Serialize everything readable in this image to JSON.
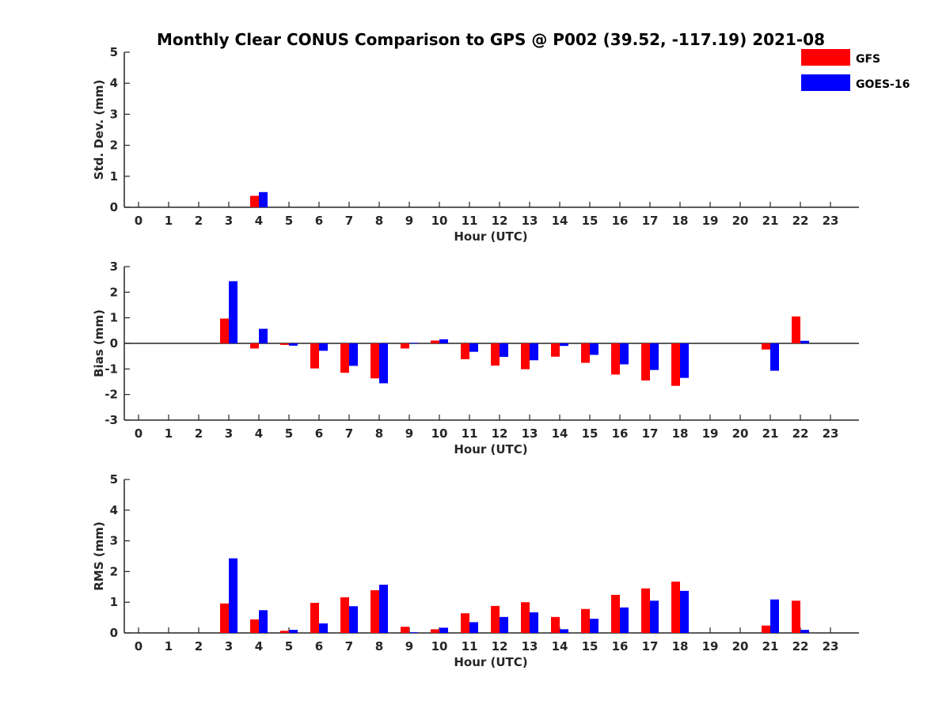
{
  "chart_data": {
    "type": "bar",
    "title": "Monthly Clear CONUS Comparison to GPS @ P002 (39.52, -117.19) 2021-08",
    "legend": {
      "placement": "top-right",
      "entries": [
        {
          "name": "GFS",
          "color": "#ff0000"
        },
        {
          "name": "GOES-16",
          "color": "#0000ff"
        }
      ]
    },
    "categories": [
      "0",
      "1",
      "2",
      "3",
      "4",
      "5",
      "6",
      "7",
      "8",
      "9",
      "10",
      "11",
      "12",
      "13",
      "14",
      "15",
      "16",
      "17",
      "18",
      "19",
      "20",
      "21",
      "22",
      "23"
    ],
    "panels": [
      {
        "ylabel": "Std. Dev. (mm)",
        "xlabel": "Hour (UTC)",
        "ylim": [
          0,
          5
        ],
        "yticks": [
          0,
          1,
          2,
          3,
          4,
          5
        ],
        "zero_line": false,
        "series": [
          {
            "name": "GFS",
            "color": "#ff0000",
            "values": [
              null,
              null,
              null,
              null,
              0.37,
              null,
              null,
              null,
              null,
              null,
              null,
              null,
              null,
              null,
              null,
              null,
              null,
              null,
              null,
              null,
              null,
              null,
              null,
              null
            ]
          },
          {
            "name": "GOES-16",
            "color": "#0000ff",
            "values": [
              null,
              null,
              null,
              null,
              0.49,
              null,
              null,
              null,
              null,
              null,
              null,
              null,
              null,
              null,
              null,
              null,
              null,
              null,
              null,
              null,
              null,
              null,
              null,
              null
            ]
          }
        ]
      },
      {
        "ylabel": "Bias (mm)",
        "xlabel": "Hour (UTC)",
        "ylim": [
          -3,
          3
        ],
        "yticks": [
          -3,
          -2,
          -1,
          0,
          1,
          2,
          3
        ],
        "zero_line": true,
        "series": [
          {
            "name": "GFS",
            "color": "#ff0000",
            "values": [
              null,
              null,
              null,
              0.97,
              -0.2,
              -0.06,
              -0.98,
              -1.15,
              -1.37,
              -0.2,
              0.11,
              -0.62,
              -0.87,
              -1.01,
              -0.52,
              -0.76,
              -1.22,
              -1.45,
              -1.66,
              null,
              null,
              -0.24,
              1.05,
              null
            ]
          },
          {
            "name": "GOES-16",
            "color": "#0000ff",
            "values": [
              null,
              null,
              null,
              2.43,
              0.57,
              -0.09,
              -0.29,
              -0.88,
              -1.56,
              0.02,
              0.16,
              -0.33,
              -0.53,
              -0.66,
              -0.1,
              -0.45,
              -0.82,
              -1.04,
              -1.35,
              null,
              null,
              -1.07,
              0.1,
              null
            ]
          }
        ]
      },
      {
        "ylabel": "RMS (mm)",
        "xlabel": "Hour (UTC)",
        "ylim": [
          0,
          5
        ],
        "yticks": [
          0,
          1,
          2,
          3,
          4,
          5
        ],
        "zero_line": false,
        "series": [
          {
            "name": "GFS",
            "color": "#ff0000",
            "values": [
              null,
              null,
              null,
              0.96,
              0.44,
              0.07,
              0.98,
              1.16,
              1.39,
              0.2,
              0.12,
              0.64,
              0.88,
              1.0,
              0.52,
              0.78,
              1.24,
              1.45,
              1.67,
              null,
              null,
              0.24,
              1.05,
              null
            ]
          },
          {
            "name": "GOES-16",
            "color": "#0000ff",
            "values": [
              null,
              null,
              null,
              2.43,
              0.74,
              0.1,
              0.31,
              0.87,
              1.57,
              0.02,
              0.17,
              0.35,
              0.52,
              0.67,
              0.12,
              0.46,
              0.83,
              1.05,
              1.37,
              null,
              null,
              1.09,
              0.1,
              null
            ]
          }
        ]
      }
    ]
  }
}
